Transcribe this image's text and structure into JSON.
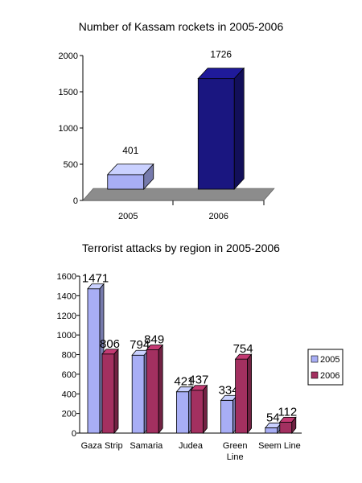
{
  "chart_data": [
    {
      "type": "bar",
      "title": "Number of Kassam rockets in 2005-2006",
      "categories": [
        "2005",
        "2006"
      ],
      "values": [
        401,
        1726
      ],
      "value_labels": [
        "401",
        "1726"
      ],
      "ylim": [
        0,
        2000
      ],
      "yticks": [
        "0",
        "500",
        "1000",
        "1500",
        "2000"
      ],
      "colors": [
        "#a8aef5",
        "#1a1680"
      ],
      "style": "3d",
      "grid": false
    },
    {
      "type": "bar",
      "title": "Terrorist attacks by region in 2005-2006",
      "categories": [
        [
          "Gaza Strip"
        ],
        [
          "Samaria"
        ],
        [
          "Judea"
        ],
        [
          "Green",
          "Line"
        ],
        [
          "Seem Line"
        ]
      ],
      "series": [
        {
          "name": "2005",
          "values": [
            1471,
            794,
            421,
            334,
            54
          ],
          "color": "#a8aef5"
        },
        {
          "name": "2006",
          "values": [
            806,
            849,
            437,
            754,
            112
          ],
          "color": "#a33060"
        }
      ],
      "ylim": [
        0,
        1600
      ],
      "yticks": [
        "0",
        "200",
        "400",
        "600",
        "800",
        "1000",
        "1200",
        "1400",
        "1600"
      ],
      "legend": "right",
      "style": "3d",
      "grid": false
    }
  ]
}
